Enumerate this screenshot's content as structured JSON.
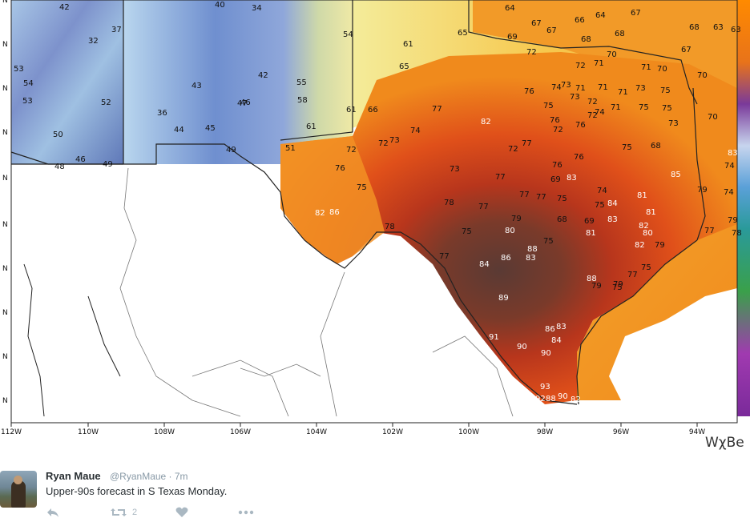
{
  "map": {
    "brand": "WχBe",
    "lon_labels": [
      "112W",
      "110W",
      "108W",
      "106W",
      "104W",
      "102W",
      "100W",
      "98W",
      "96W",
      "94W"
    ],
    "lat_labels": [
      "N",
      "N",
      "N",
      "N",
      "N",
      "N",
      "N",
      "N",
      "N",
      "N"
    ],
    "colors": {
      "coolest": "#6a5aa8",
      "cool": "#8fb4d9",
      "mild": "#f0eca8",
      "warm": "#f6c24a",
      "hot": "#f08a1c",
      "hotter": "#e0501a",
      "hottest": "#b8361c",
      "extreme": "#7a3a2a",
      "extreme_max": "#5a3a34"
    },
    "values": [
      {
        "v": "42"
      },
      {
        "v": "37"
      },
      {
        "v": "32"
      },
      {
        "v": "40"
      },
      {
        "v": "34"
      },
      {
        "v": "53"
      },
      {
        "v": "54"
      },
      {
        "v": "53"
      },
      {
        "v": "52"
      },
      {
        "v": "43"
      },
      {
        "v": "42"
      },
      {
        "v": "36"
      },
      {
        "v": "44"
      },
      {
        "v": "45"
      },
      {
        "v": "47"
      },
      {
        "v": "50"
      },
      {
        "v": "46"
      },
      {
        "v": "49"
      },
      {
        "v": "46"
      },
      {
        "v": "48"
      },
      {
        "v": "54"
      },
      {
        "v": "55"
      },
      {
        "v": "58"
      },
      {
        "v": "61"
      },
      {
        "v": "61"
      },
      {
        "v": "65"
      },
      {
        "v": "61"
      },
      {
        "v": "65"
      },
      {
        "v": "66"
      },
      {
        "v": "51"
      },
      {
        "v": "49"
      },
      {
        "v": "64"
      },
      {
        "v": "69"
      },
      {
        "v": "67"
      },
      {
        "v": "67"
      },
      {
        "v": "66"
      },
      {
        "v": "64"
      },
      {
        "v": "67"
      },
      {
        "v": "68"
      },
      {
        "v": "63"
      },
      {
        "v": "63"
      },
      {
        "v": "72"
      },
      {
        "v": "68"
      },
      {
        "v": "68"
      },
      {
        "v": "70"
      },
      {
        "v": "72"
      },
      {
        "v": "71"
      },
      {
        "v": "71"
      },
      {
        "v": "70"
      },
      {
        "v": "67"
      },
      {
        "v": "70"
      },
      {
        "v": "76"
      },
      {
        "v": "74"
      },
      {
        "v": "73"
      },
      {
        "v": "71"
      },
      {
        "v": "71"
      },
      {
        "v": "71"
      },
      {
        "v": "73"
      },
      {
        "v": "75"
      },
      {
        "v": "73"
      },
      {
        "v": "72"
      },
      {
        "v": "71"
      },
      {
        "v": "75"
      },
      {
        "v": "75"
      },
      {
        "v": "75"
      },
      {
        "v": "77"
      },
      {
        "v": "82"
      },
      {
        "v": "74"
      },
      {
        "v": "73"
      },
      {
        "v": "72"
      },
      {
        "v": "76"
      },
      {
        "v": "76"
      },
      {
        "v": "74"
      },
      {
        "v": "72"
      },
      {
        "v": "70"
      },
      {
        "v": "72"
      },
      {
        "v": "73"
      },
      {
        "v": "72"
      },
      {
        "v": "72"
      },
      {
        "v": "77"
      },
      {
        "v": "76"
      },
      {
        "v": "68"
      },
      {
        "v": "83"
      },
      {
        "v": "76"
      },
      {
        "v": "73"
      },
      {
        "v": "77"
      },
      {
        "v": "76"
      },
      {
        "v": "69"
      },
      {
        "v": "83"
      },
      {
        "v": "85"
      },
      {
        "v": "75"
      },
      {
        "v": "74"
      },
      {
        "v": "75"
      },
      {
        "v": "77"
      },
      {
        "v": "77"
      },
      {
        "v": "75"
      },
      {
        "v": "74"
      },
      {
        "v": "84"
      },
      {
        "v": "81"
      },
      {
        "v": "79"
      },
      {
        "v": "74"
      },
      {
        "v": "78"
      },
      {
        "v": "77"
      },
      {
        "v": "75"
      },
      {
        "v": "82"
      },
      {
        "v": "86"
      },
      {
        "v": "79"
      },
      {
        "v": "68"
      },
      {
        "v": "69"
      },
      {
        "v": "83"
      },
      {
        "v": "82"
      },
      {
        "v": "77"
      },
      {
        "v": "79"
      },
      {
        "v": "78"
      },
      {
        "v": "75"
      },
      {
        "v": "80"
      },
      {
        "v": "81"
      },
      {
        "v": "81"
      },
      {
        "v": "80"
      },
      {
        "v": "78"
      },
      {
        "v": "75"
      },
      {
        "v": "82"
      },
      {
        "v": "79"
      },
      {
        "v": "77"
      },
      {
        "v": "88"
      },
      {
        "v": "83"
      },
      {
        "v": "84"
      },
      {
        "v": "86"
      },
      {
        "v": "88"
      },
      {
        "v": "79"
      },
      {
        "v": "75"
      },
      {
        "v": "77"
      },
      {
        "v": "89"
      },
      {
        "v": "79"
      },
      {
        "v": "75"
      },
      {
        "v": "86"
      },
      {
        "v": "83"
      },
      {
        "v": "84"
      },
      {
        "v": "91"
      },
      {
        "v": "90"
      },
      {
        "v": "90"
      },
      {
        "v": "93"
      },
      {
        "v": "92"
      },
      {
        "v": "88"
      },
      {
        "v": "90"
      },
      {
        "v": "82"
      },
      {
        "v": "84"
      }
    ]
  },
  "tweet": {
    "name": "Ryan Maue",
    "handle": "@RyanMaue · 7m",
    "text": "Upper-90s forecast in S Texas Monday.",
    "retweet_count": "2",
    "icons": [
      "reply-icon",
      "retweet-icon",
      "like-icon",
      "more-icon"
    ]
  }
}
